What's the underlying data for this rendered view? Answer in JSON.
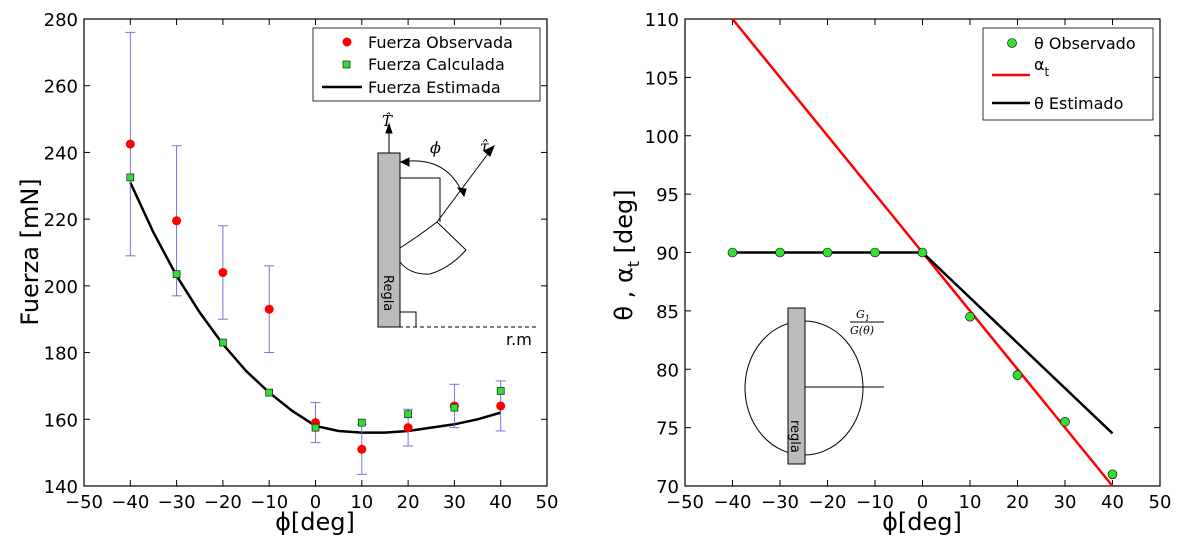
{
  "chart_data": [
    {
      "type": "scatter",
      "xlabel": "ϕ[deg]",
      "ylabel": "Fuerza [mN]",
      "xlim": [
        -50,
        50
      ],
      "ylim": [
        140,
        280
      ],
      "xticks": [
        -50,
        -40,
        -30,
        -20,
        -10,
        0,
        10,
        20,
        30,
        40,
        50
      ],
      "yticks": [
        140,
        160,
        180,
        200,
        220,
        240,
        260,
        280
      ],
      "legend_position": "top-right",
      "grid": false,
      "series": [
        {
          "name": "Fuerza Observada",
          "kind": "points",
          "marker": "circle",
          "color": "#ff0000",
          "x": [
            -40,
            -30,
            -20,
            -10,
            0,
            10,
            20,
            30,
            40
          ],
          "y": [
            242.5,
            219.5,
            204,
            193,
            159,
            151,
            157.5,
            164,
            164
          ],
          "error": [
            33.5,
            22.5,
            14,
            13,
            6,
            7.5,
            5.5,
            6.5,
            7.5
          ]
        },
        {
          "name": "Fuerza Calculada",
          "kind": "points",
          "marker": "square",
          "color": "#33dd33",
          "x": [
            -40,
            -30,
            -20,
            -10,
            0,
            10,
            20,
            30,
            40
          ],
          "y": [
            232.5,
            203.5,
            183,
            168,
            157.5,
            159,
            161.5,
            163.5,
            168.5
          ]
        },
        {
          "name": "Fuerza Estimada",
          "kind": "line",
          "color": "#000000",
          "x": [
            -40,
            -35,
            -30,
            -25,
            -20,
            -15,
            -10,
            -5,
            0,
            5,
            10,
            15,
            20,
            25,
            30,
            35,
            40
          ],
          "y": [
            231,
            216,
            203,
            192,
            182.5,
            174.5,
            168,
            162.5,
            158,
            156.5,
            156,
            156,
            156.5,
            157.5,
            158.5,
            160,
            162
          ]
        }
      ],
      "inset": {
        "labels": {
          "T": "T̂",
          "phi": "ϕ",
          "tau": "τ̂",
          "regla": "Regla",
          "rm": "r.m"
        }
      }
    },
    {
      "type": "scatter",
      "xlabel": "ϕ[deg]",
      "ylabel": "θ , α",
      "ylabel_sub": "t",
      "ylabel_unit": " [deg]",
      "xlim": [
        -50,
        50
      ],
      "ylim": [
        70,
        110
      ],
      "xticks": [
        -50,
        -40,
        -30,
        -20,
        -10,
        0,
        10,
        20,
        30,
        40,
        50
      ],
      "yticks": [
        70,
        75,
        80,
        85,
        90,
        95,
        100,
        105,
        110
      ],
      "legend_position": "top-right",
      "grid": false,
      "series": [
        {
          "name": "θ Observado",
          "kind": "points",
          "marker": "circle",
          "color": "#33dd33",
          "x": [
            -40,
            -30,
            -20,
            -10,
            0,
            10,
            20,
            30,
            40
          ],
          "y": [
            90,
            90,
            90,
            90,
            90,
            84.5,
            79.5,
            75.5,
            71
          ]
        },
        {
          "name": "α",
          "name_sub": "t",
          "kind": "line",
          "color": "#ff0000",
          "x": [
            -40,
            40
          ],
          "y": [
            110,
            70
          ]
        },
        {
          "name": "θ Estimado",
          "kind": "line",
          "color": "#000000",
          "x": [
            -40,
            0,
            40
          ],
          "y": [
            90,
            90,
            74.5
          ]
        }
      ],
      "inset": {
        "labels": {
          "ratio_num": "G",
          "ratio_num_sub": "1",
          "ratio_den": "G(θ)",
          "regla": "regla"
        }
      }
    }
  ]
}
